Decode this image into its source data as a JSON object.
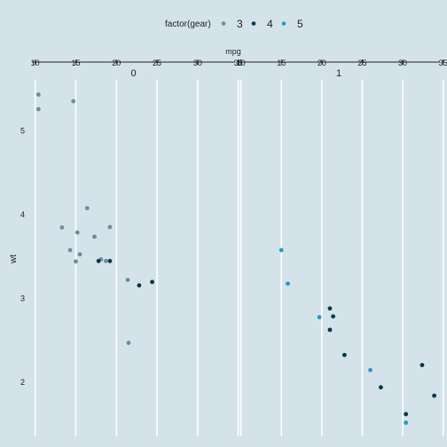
{
  "chart_data": {
    "type": "scatter",
    "title": "",
    "xlabel": "mpg",
    "ylabel": "wt",
    "x_axis_position": "top",
    "grid": true,
    "facet_labels": [
      "0",
      "1"
    ],
    "x_ticks": [
      10,
      15,
      20,
      25,
      30,
      35
    ],
    "x_tick_labels": [
      "10",
      "15",
      "20",
      "25",
      "30",
      "35"
    ],
    "y_ticks": [
      2,
      3,
      4,
      5
    ],
    "y_tick_labels": [
      "2",
      "3",
      "4",
      "5"
    ],
    "xlim": [
      9.6,
      34.6
    ],
    "ylim": [
      1.35,
      5.6
    ],
    "legend": {
      "title": "factor(gear)",
      "position": "top",
      "items": [
        {
          "label": "3",
          "color": "#6b8e9c"
        },
        {
          "label": "4",
          "color": "#07384a"
        },
        {
          "label": "5",
          "color": "#1e9cc8"
        }
      ]
    },
    "series": [
      {
        "name": "3",
        "color": "#6b8e9c",
        "panels": [
          [
            [
              10.4,
              5.424
            ],
            [
              10.4,
              5.25
            ],
            [
              14.7,
              5.345
            ],
            [
              16.4,
              4.07
            ],
            [
              13.3,
              3.84
            ],
            [
              15.2,
              3.78
            ],
            [
              19.2,
              3.845
            ],
            [
              17.3,
              3.73
            ],
            [
              14.3,
              3.57
            ],
            [
              15.5,
              3.52
            ],
            [
              18.7,
              3.44
            ],
            [
              15.0,
              3.435
            ],
            [
              18.1,
              3.46
            ],
            [
              21.4,
              3.215
            ],
            [
              21.5,
              2.465
            ]
          ],
          []
        ]
      },
      {
        "name": "4",
        "color": "#07384a",
        "panels": [
          [
            [
              17.8,
              3.44
            ],
            [
              19.2,
              3.44
            ],
            [
              22.8,
              3.15
            ],
            [
              24.4,
              3.19
            ]
          ],
          [
            [
              21.0,
              2.875
            ],
            [
              21.0,
              2.62
            ],
            [
              21.4,
              2.78
            ],
            [
              22.8,
              2.32
            ],
            [
              27.3,
              1.935
            ],
            [
              32.4,
              2.2
            ],
            [
              33.9,
              1.835
            ],
            [
              30.4,
              1.615
            ]
          ]
        ]
      },
      {
        "name": "5",
        "color": "#1e9cc8",
        "panels": [
          [],
          [
            [
              15.0,
              3.57
            ],
            [
              15.8,
              3.17
            ],
            [
              19.7,
              2.77
            ],
            [
              26.0,
              2.14
            ],
            [
              30.4,
              1.513
            ]
          ]
        ]
      }
    ]
  }
}
